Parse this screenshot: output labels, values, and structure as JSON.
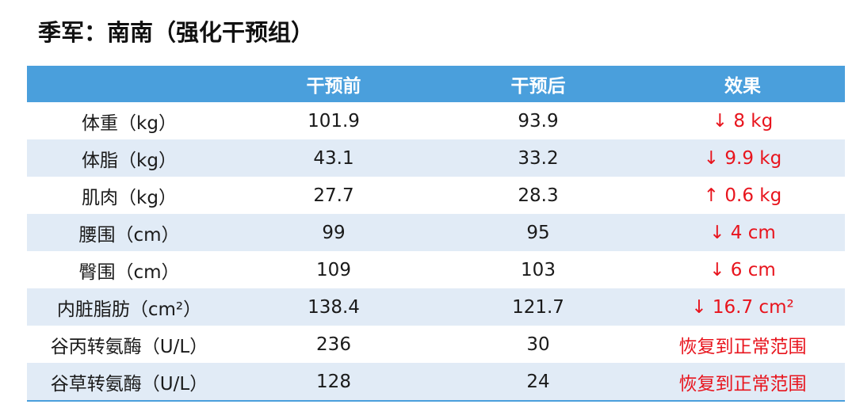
{
  "title": "季军：南南（强化干预组）",
  "header": [
    "",
    "干预前",
    "干预后",
    "效果"
  ],
  "rows": [
    {
      "metric": "体重（kg）",
      "before": "101.9",
      "after": "93.9",
      "effect": "↓ 8 kg"
    },
    {
      "metric": "体脂（kg）",
      "before": "43.1",
      "after": "33.2",
      "effect": "↓ 9.9 kg"
    },
    {
      "metric": "肌肉（kg）",
      "before": "27.7",
      "after": "28.3",
      "effect": "↑ 0.6 kg"
    },
    {
      "metric": "腰围（cm）",
      "before": "99",
      "after": "95",
      "effect": "↓ 4 cm"
    },
    {
      "metric": "臀围（cm）",
      "before": "109",
      "after": "103",
      "effect": "↓ 6 cm"
    },
    {
      "metric": "内脏脂肪（cm²）",
      "before": "138.4",
      "after": "121.7",
      "effect": "↓ 16.7 cm²"
    },
    {
      "metric": "谷丙转氨酶（U/L）",
      "before": "236",
      "after": "30",
      "effect": "恢复到正常范围"
    },
    {
      "metric": "谷草转氨酶（U/L）",
      "before": "128",
      "after": "24",
      "effect": "恢复到正常范围"
    }
  ],
  "colors": {
    "header_bg": "#4a9fdc",
    "stripe_bg": "#e1ebf6",
    "effect_text": "#e8141d"
  }
}
